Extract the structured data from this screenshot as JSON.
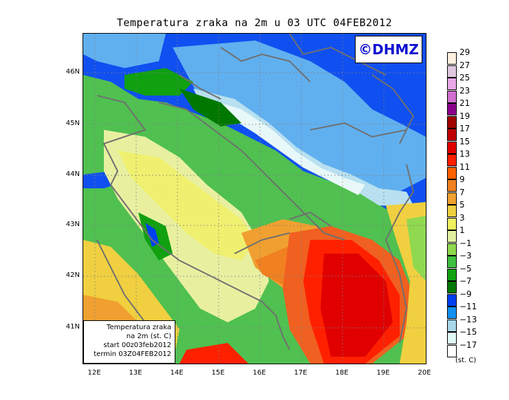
{
  "title": "Temperatura zraka na 2m u 03 UTC 04FEB2012",
  "logo": "©DHMZ",
  "info_box": {
    "line1": "Temperatura zraka",
    "line2": "na 2m (st. C)",
    "line3": "start 00z03feb2012",
    "line4": "termin 03Z04FEB2012"
  },
  "y_axis_labels": [
    "46N",
    "45N",
    "44N",
    "43N",
    "42N",
    "41N"
  ],
  "x_axis_labels": [
    "12E",
    "13E",
    "14E",
    "15E",
    "16E",
    "17E",
    "18E",
    "19E",
    "20E"
  ],
  "legend": {
    "unit": "(st. C)",
    "levels": [
      "29",
      "27",
      "25",
      "23",
      "21",
      "19",
      "17",
      "15",
      "13",
      "11",
      "9",
      "7",
      "5",
      "3",
      "1",
      "−1",
      "−3",
      "−5",
      "−7",
      "−9",
      "−11",
      "−13",
      "−15",
      "−17"
    ],
    "colors": [
      "#fff0e0",
      "#e0c8e0",
      "#e8a8e8",
      "#d070d0",
      "#8b008b",
      "#a00000",
      "#c00000",
      "#e00000",
      "#ff2000",
      "#ff6000",
      "#f08020",
      "#f0a030",
      "#f0d040",
      "#f0f060",
      "#e0f0a0",
      "#90d850",
      "#40c040",
      "#10a010",
      "#007800",
      "#0040f0",
      "#1090f0",
      "#a8d8e8",
      "#e0f8f8",
      "#ffffff"
    ]
  },
  "colors": {
    "sea": "#40b040",
    "coastline": "#707070",
    "gridline": "#808080"
  }
}
